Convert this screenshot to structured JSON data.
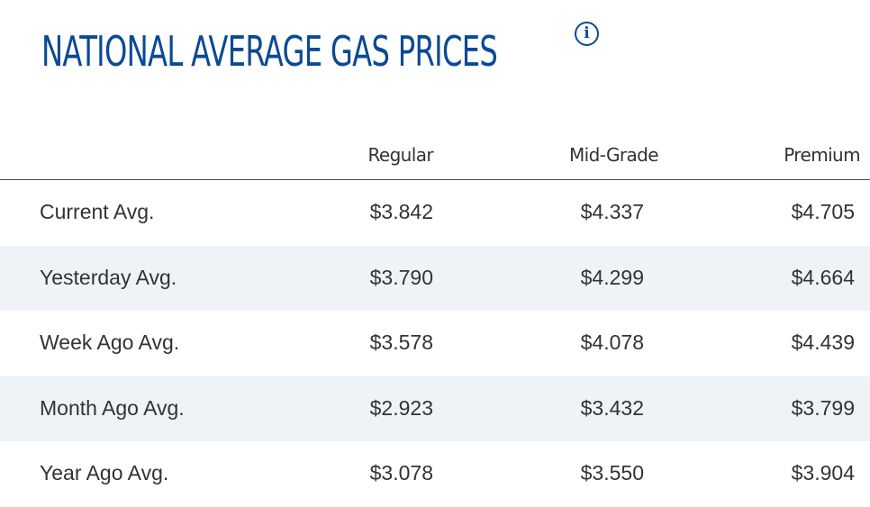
{
  "header": {
    "title": "NATIONAL AVERAGE GAS PRICES",
    "info_icon": "info-icon",
    "info_glyph": "i"
  },
  "colors": {
    "title": "#0b4a94",
    "text": "#333333",
    "row_alt": "#eef3f8"
  },
  "table": {
    "columns": [
      "Regular",
      "Mid-Grade",
      "Premium"
    ],
    "rows": [
      {
        "label": "Current Avg.",
        "regular": "$3.842",
        "mid_grade": "$4.337",
        "premium": "$4.705"
      },
      {
        "label": "Yesterday Avg.",
        "regular": "$3.790",
        "mid_grade": "$4.299",
        "premium": "$4.664"
      },
      {
        "label": "Week Ago Avg.",
        "regular": "$3.578",
        "mid_grade": "$4.078",
        "premium": "$4.439"
      },
      {
        "label": "Month Ago Avg.",
        "regular": "$2.923",
        "mid_grade": "$3.432",
        "premium": "$3.799"
      },
      {
        "label": "Year Ago Avg.",
        "regular": "$3.078",
        "mid_grade": "$3.550",
        "premium": "$3.904"
      }
    ]
  }
}
